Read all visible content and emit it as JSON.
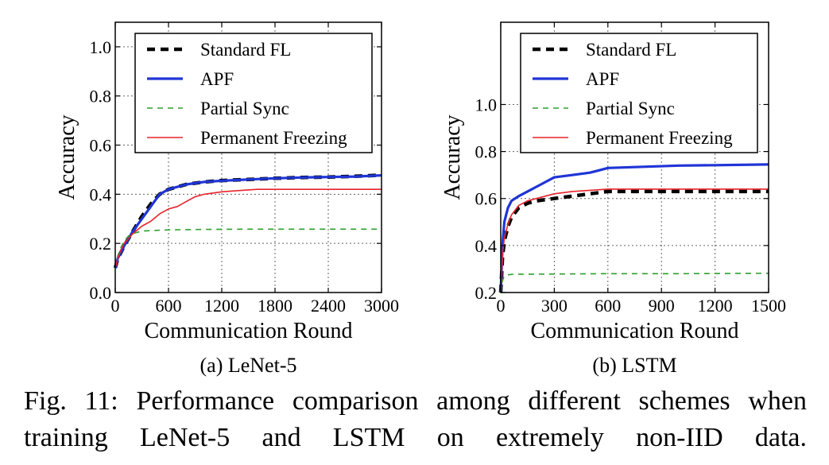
{
  "chart_data": [
    {
      "type": "line",
      "subcaption": "(a) LeNet-5",
      "xlabel": "Communication Round",
      "ylabel": "Accuracy",
      "xlim": [
        0,
        3000
      ],
      "ylim": [
        0,
        1.1
      ],
      "xticks": [
        0,
        600,
        1200,
        1800,
        2400,
        3000
      ],
      "xtick_labels": [
        "0",
        "600",
        "1200",
        "1800",
        "2400",
        "3000"
      ],
      "yticks": [
        0.0,
        0.2,
        0.4,
        0.6,
        0.8,
        1.0
      ],
      "ytick_labels": [
        "0.0",
        "0.2",
        "0.4",
        "0.6",
        "0.8",
        "1.0"
      ],
      "grid": true,
      "legend_position": "top-right",
      "series": [
        {
          "name": "Standard FL",
          "color": "#000000",
          "style": "dashed-thick",
          "x": [
            0,
            30,
            60,
            100,
            150,
            200,
            300,
            400,
            500,
            600,
            800,
            1000,
            1200,
            1500,
            1800,
            2100,
            2400,
            2700,
            3000
          ],
          "y": [
            0.1,
            0.14,
            0.16,
            0.19,
            0.22,
            0.25,
            0.31,
            0.36,
            0.4,
            0.42,
            0.44,
            0.45,
            0.456,
            0.46,
            0.465,
            0.468,
            0.47,
            0.473,
            0.478
          ]
        },
        {
          "name": "APF",
          "color": "#1f35d6",
          "style": "solid-thick",
          "x": [
            0,
            30,
            60,
            100,
            150,
            200,
            300,
            400,
            500,
            600,
            800,
            1000,
            1200,
            1500,
            1800,
            2100,
            2400,
            2700,
            3000
          ],
          "y": [
            0.1,
            0.14,
            0.16,
            0.19,
            0.22,
            0.25,
            0.3,
            0.35,
            0.4,
            0.42,
            0.44,
            0.45,
            0.455,
            0.46,
            0.465,
            0.468,
            0.47,
            0.472,
            0.477
          ]
        },
        {
          "name": "Partial Sync",
          "color": "#2ca02c",
          "style": "dashed-thin",
          "x": [
            0,
            30,
            60,
            100,
            150,
            200,
            300,
            400,
            600,
            1000,
            1500,
            2000,
            2500,
            3000
          ],
          "y": [
            0.1,
            0.15,
            0.18,
            0.21,
            0.23,
            0.24,
            0.25,
            0.252,
            0.255,
            0.257,
            0.258,
            0.258,
            0.258,
            0.258
          ]
        },
        {
          "name": "Permanent Freezing",
          "color": "#e8232b",
          "style": "solid-thin",
          "x": [
            0,
            30,
            60,
            100,
            150,
            200,
            300,
            400,
            500,
            600,
            700,
            800,
            900,
            1000,
            1200,
            1400,
            1600,
            2000,
            3000
          ],
          "y": [
            0.1,
            0.14,
            0.17,
            0.2,
            0.22,
            0.24,
            0.27,
            0.29,
            0.32,
            0.34,
            0.35,
            0.37,
            0.39,
            0.4,
            0.41,
            0.415,
            0.42,
            0.42,
            0.42
          ]
        }
      ]
    },
    {
      "type": "line",
      "subcaption": "(b) LSTM",
      "xlabel": "Communication Round",
      "ylabel": "Accuracy",
      "xlim": [
        0,
        1500
      ],
      "ylim": [
        0.2,
        1.35
      ],
      "xticks": [
        0,
        300,
        600,
        900,
        1200,
        1500
      ],
      "xtick_labels": [
        "0",
        "300",
        "600",
        "900",
        "1200",
        "1500"
      ],
      "yticks": [
        0.2,
        0.4,
        0.6,
        0.8,
        1.0
      ],
      "ytick_labels": [
        "0.2",
        "0.4",
        "0.6",
        "0.8",
        "1.0"
      ],
      "grid": true,
      "legend_position": "top-right",
      "series": [
        {
          "name": "Standard FL",
          "color": "#000000",
          "style": "dashed-thick",
          "x": [
            0,
            10,
            20,
            40,
            60,
            100,
            150,
            200,
            300,
            400,
            500,
            600,
            800,
            1000,
            1200,
            1500
          ],
          "y": [
            0.2,
            0.35,
            0.42,
            0.48,
            0.52,
            0.56,
            0.58,
            0.59,
            0.6,
            0.61,
            0.62,
            0.63,
            0.63,
            0.63,
            0.63,
            0.63
          ]
        },
        {
          "name": "APF",
          "color": "#1f35d6",
          "style": "solid-thick",
          "x": [
            0,
            10,
            20,
            40,
            60,
            100,
            150,
            200,
            250,
            300,
            400,
            500,
            550,
            600,
            800,
            1000,
            1200,
            1500
          ],
          "y": [
            0.2,
            0.4,
            0.5,
            0.56,
            0.59,
            0.61,
            0.63,
            0.65,
            0.67,
            0.69,
            0.7,
            0.71,
            0.72,
            0.73,
            0.735,
            0.74,
            0.742,
            0.745
          ]
        },
        {
          "name": "Partial Sync",
          "color": "#2ca02c",
          "style": "dashed-thin",
          "x": [
            0,
            10,
            20,
            40,
            60,
            100,
            200,
            400,
            600,
            800,
            1000,
            1200,
            1500
          ],
          "y": [
            0.2,
            0.25,
            0.27,
            0.275,
            0.277,
            0.278,
            0.278,
            0.279,
            0.28,
            0.28,
            0.28,
            0.281,
            0.282
          ]
        },
        {
          "name": "Permanent Freezing",
          "color": "#e8232b",
          "style": "solid-thin",
          "x": [
            0,
            10,
            20,
            40,
            60,
            100,
            150,
            200,
            300,
            400,
            500,
            600,
            800,
            1000,
            1200,
            1500
          ],
          "y": [
            0.2,
            0.36,
            0.43,
            0.49,
            0.53,
            0.57,
            0.59,
            0.6,
            0.62,
            0.63,
            0.635,
            0.64,
            0.64,
            0.64,
            0.64,
            0.64
          ]
        }
      ]
    }
  ],
  "caption": {
    "label": "Fig. 11:",
    "text": "Performance comparison among different schemes when training LeNet-5 and LSTM on extremely non-IID data."
  }
}
